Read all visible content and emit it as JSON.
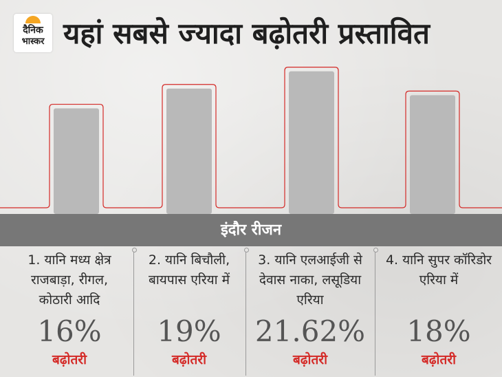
{
  "logo": {
    "line1": "दैनिक",
    "line2": "भास्कर"
  },
  "title": "यहां सबसे ज्यादा बढ़ोतरी प्रस्तावित",
  "region": "इंदौर रीजन",
  "colors": {
    "bar": "#b9b9b9",
    "outline": "#d42a27",
    "region_bar": "#777777",
    "accent_text": "#d42a27"
  },
  "items": [
    {
      "desc": "1. यानि मध्य क्षेत्र राजबाड़ा, रीगल, कोठारी आदि",
      "value_text": "16%",
      "label": "बढ़ोतरी"
    },
    {
      "desc": "2. यानि बिचौली, बायपास एरिया में",
      "value_text": "19%",
      "label": "बढ़ोतरी"
    },
    {
      "desc": "3. यानि एलआईजी से देवास नाका, लसूडिया एरिया",
      "value_text": "21.62%",
      "label": "बढ़ोतरी"
    },
    {
      "desc": "4. यानि सुपर कॉरिडोर एरिया में",
      "value_text": "18%",
      "label": "बढ़ोतरी"
    }
  ],
  "chart_data": {
    "type": "bar",
    "categories": [
      "1. यानि मध्य क्षेत्र राजबाड़ा, रीगल, कोठारी आदि",
      "2. यानि बिचौली, बायपास एरिया में",
      "3. यानि एलआईजी से देवास नाका, लसूडिया एरिया",
      "4. यानि सुपर कॉरिडोर एरिया में"
    ],
    "values": [
      16,
      19,
      21.62,
      18
    ],
    "title": "यहां सबसे ज्यादा बढ़ोतरी प्रस्तावित",
    "xlabel": "इंदौर रीजन",
    "ylabel": "",
    "ylim": [
      0,
      22
    ]
  }
}
